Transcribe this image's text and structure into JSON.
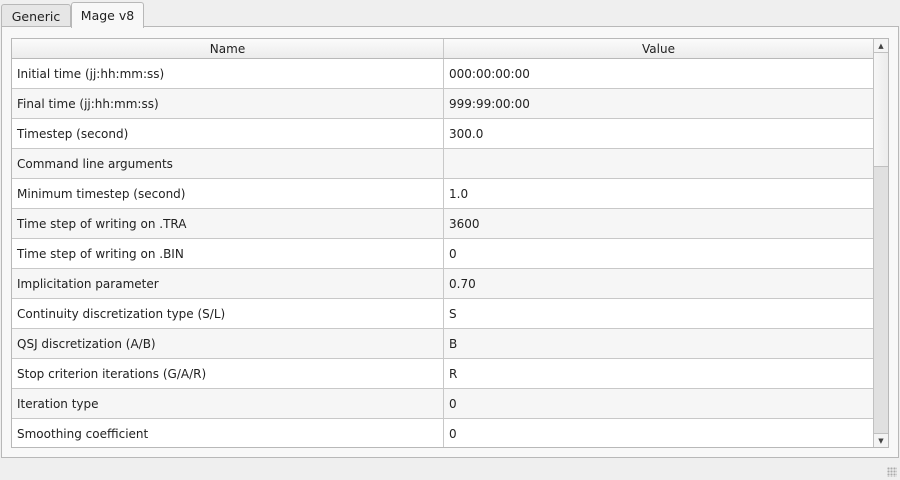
{
  "tabs": [
    {
      "label": "Generic",
      "active": false
    },
    {
      "label": "Mage v8",
      "active": true
    }
  ],
  "table": {
    "columns": [
      "Name",
      "Value"
    ],
    "rows": [
      [
        "Initial time (jj:hh:mm:ss)",
        "000:00:00:00"
      ],
      [
        "Final time (jj:hh:mm:ss)",
        "999:99:00:00"
      ],
      [
        "Timestep (second)",
        "300.0"
      ],
      [
        "Command line arguments",
        ""
      ],
      [
        "Minimum timestep (second)",
        "1.0"
      ],
      [
        "Time step of writing on .TRA",
        "3600"
      ],
      [
        "Time step of writing on .BIN",
        "0"
      ],
      [
        "Implicitation parameter",
        "0.70"
      ],
      [
        "Continuity discretization type (S/L)",
        "S"
      ],
      [
        "QSJ discretization (A/B)",
        "B"
      ],
      [
        "Stop criterion iterations (G/A/R)",
        "R"
      ],
      [
        "Iteration type",
        "0"
      ],
      [
        "Smoothing coefficient",
        "0"
      ]
    ]
  },
  "scrollbar": {
    "position_fraction": 0.0,
    "visible_fraction": 0.3
  }
}
